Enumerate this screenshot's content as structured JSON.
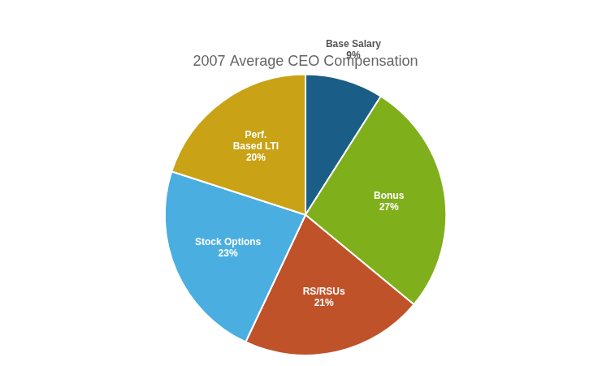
{
  "chart_data": {
    "type": "pie",
    "title": "2007 Average CEO Compensation",
    "categories": [
      "Base Salary",
      "Bonus",
      "RS/RSUs",
      "Stock Options",
      "Perf.\nBased LTI"
    ],
    "values": [
      9,
      27,
      21,
      23,
      20
    ],
    "value_labels": [
      "9%",
      "27%",
      "21%",
      "23%",
      "20%"
    ],
    "data_labels": true,
    "colors": [
      "#1A5E87",
      "#7FAF1B",
      "#C0522A",
      "#4AAEE0",
      "#C9A215"
    ]
  }
}
